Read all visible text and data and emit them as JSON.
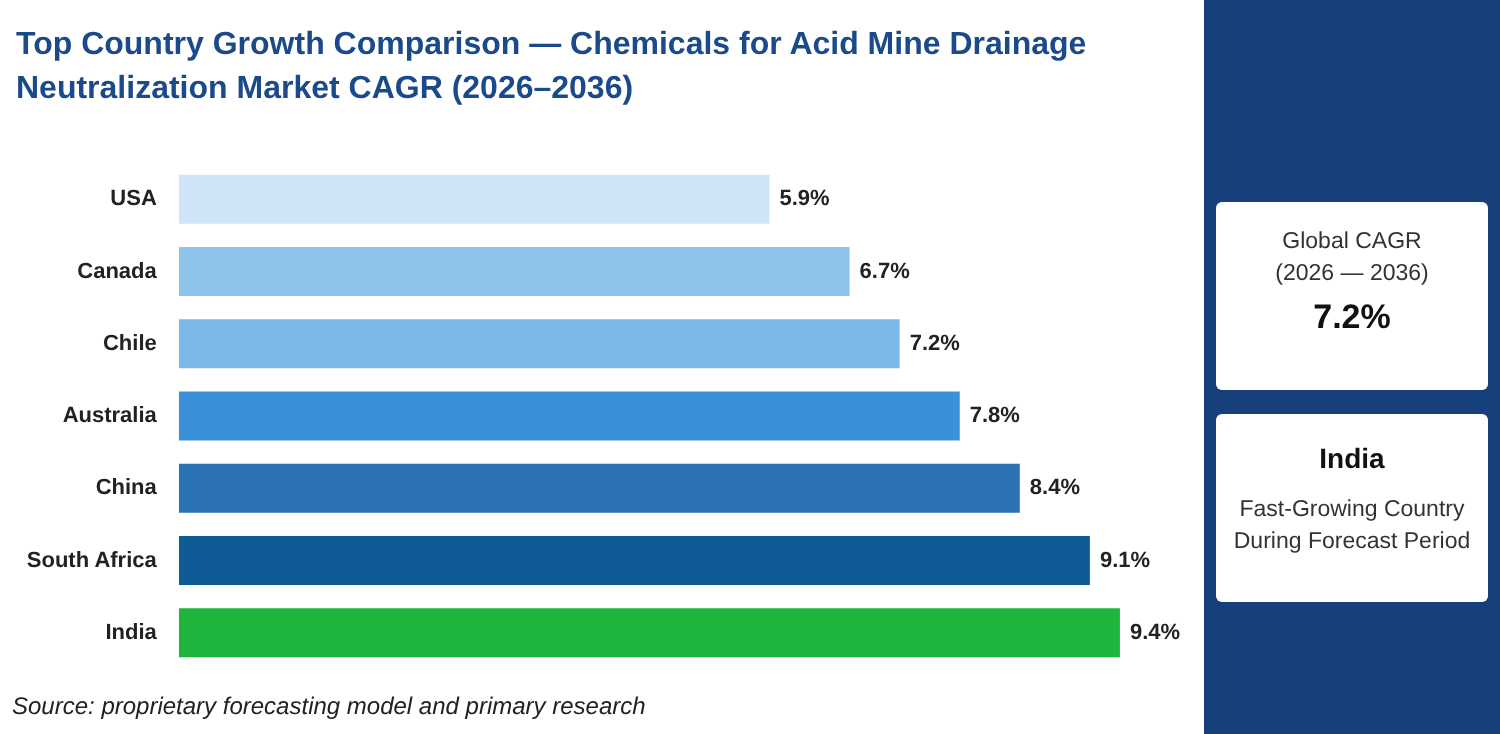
{
  "chart_data": {
    "type": "bar",
    "orientation": "horizontal",
    "title": "Top Country Growth Comparison — Chemicals for Acid Mine Drainage Neutralization Market CAGR (2026–2036)",
    "categories": [
      "USA",
      "Canada",
      "Chile",
      "Australia",
      "China",
      "South Africa",
      "India"
    ],
    "values": [
      5.9,
      6.7,
      7.2,
      7.8,
      8.4,
      9.1,
      9.4
    ],
    "colors": [
      "#cfe4f6",
      "#8fc4ea",
      "#7cb9e6",
      "#3b91d8",
      "#2a72b2",
      "#0e5b95",
      "#1fb43c"
    ],
    "value_labels": [
      "5.9%",
      "6.7%",
      "7.2%",
      "7.8%",
      "8.4%",
      "9.1%",
      "9.4%"
    ],
    "annotations": [
      "Source: proprietary forecasting model and primary research",
      "Global CAGR",
      "(2026 — 2036)",
      "7.2%",
      "India",
      "Fast-Growing Country",
      "During Forecast Period"
    ]
  }
}
